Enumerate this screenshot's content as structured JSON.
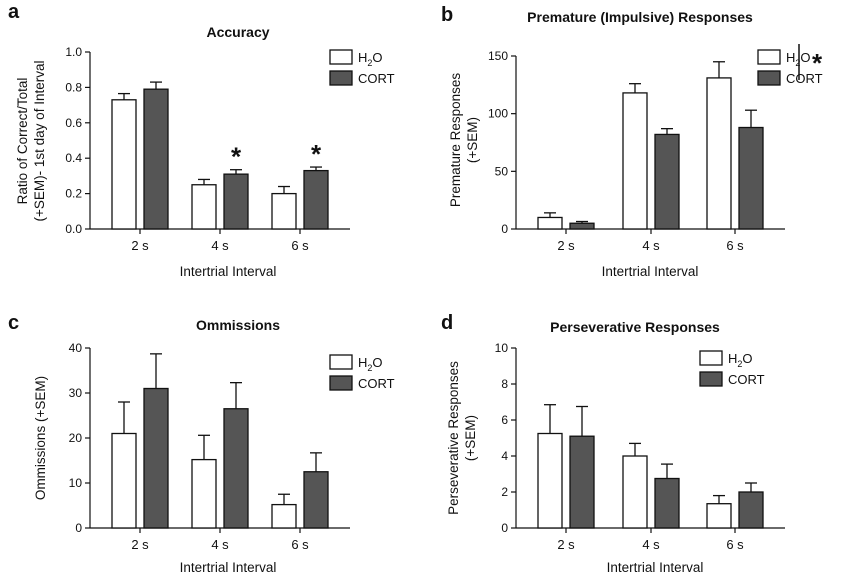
{
  "chart_data": [
    {
      "type": "bar",
      "panel": "a",
      "title": "Accuracy",
      "xlabel": "Intertrial Interval",
      "ylabel": [
        "Ratio of Correct/Total",
        "(+SEM)- 1st day of Interval"
      ],
      "categories": [
        "2 s",
        "4 s",
        "6 s"
      ],
      "ylim": [
        0,
        1.0
      ],
      "yticks": [
        "0.0",
        "0.2",
        "0.4",
        "0.6",
        "0.8",
        "1.0"
      ],
      "series": [
        {
          "name": "H2O",
          "legend_main": "H",
          "legend_sub": "2",
          "legend_tail": "O",
          "color": "#ffffff",
          "values": [
            0.73,
            0.25,
            0.2
          ],
          "sem": [
            0.035,
            0.03,
            0.04
          ]
        },
        {
          "name": "CORT",
          "color": "#555555",
          "values": [
            0.79,
            0.31,
            0.33
          ],
          "sem": [
            0.04,
            0.025,
            0.02
          ]
        }
      ],
      "significance": [
        {
          "category": "4 s",
          "mark": "*"
        },
        {
          "category": "6 s",
          "mark": "*"
        }
      ]
    },
    {
      "type": "bar",
      "panel": "b",
      "title": "Premature (Impulsive) Responses",
      "xlabel": "Intertrial Interval",
      "ylabel": [
        "Premature Responses",
        "(+SEM)"
      ],
      "categories": [
        "2 s",
        "4 s",
        "6 s"
      ],
      "ylim": [
        0,
        150
      ],
      "yticks": [
        "0",
        "50",
        "100",
        "150"
      ],
      "series": [
        {
          "name": "H2O",
          "legend_main": "H",
          "legend_sub": "2",
          "legend_tail": "O",
          "color": "#ffffff",
          "values": [
            10,
            118,
            131
          ],
          "sem": [
            4,
            8,
            14
          ]
        },
        {
          "name": "CORT",
          "color": "#555555",
          "values": [
            5,
            82,
            88
          ],
          "sem": [
            1.5,
            5,
            15
          ]
        }
      ],
      "legend_significance": "*"
    },
    {
      "type": "bar",
      "panel": "c",
      "title": "Ommissions",
      "xlabel": "Intertrial Interval",
      "ylabel": [
        "Ommissions (+SEM)"
      ],
      "categories": [
        "2 s",
        "4 s",
        "6 s"
      ],
      "ylim": [
        0,
        40
      ],
      "yticks": [
        "0",
        "10",
        "20",
        "30",
        "40"
      ],
      "series": [
        {
          "name": "H2O",
          "legend_main": "H",
          "legend_sub": "2",
          "legend_tail": "O",
          "color": "#ffffff",
          "values": [
            21,
            15.2,
            5.2
          ],
          "sem": [
            7,
            5.4,
            2.3
          ]
        },
        {
          "name": "CORT",
          "color": "#555555",
          "values": [
            31,
            26.5,
            12.5
          ],
          "sem": [
            7.7,
            5.8,
            4.2
          ]
        }
      ]
    },
    {
      "type": "bar",
      "panel": "d",
      "title": "Perseverative Responses",
      "xlabel": "Intertrial Interval",
      "ylabel": [
        "Perseverative Responses",
        "(+SEM)"
      ],
      "categories": [
        "2 s",
        "4 s",
        "6 s"
      ],
      "ylim": [
        0,
        10
      ],
      "yticks": [
        "0",
        "2",
        "4",
        "6",
        "8",
        "10"
      ],
      "series": [
        {
          "name": "H2O",
          "legend_main": "H",
          "legend_sub": "2",
          "legend_tail": "O",
          "color": "#ffffff",
          "values": [
            5.25,
            4.0,
            1.35
          ],
          "sem": [
            1.6,
            0.7,
            0.45
          ]
        },
        {
          "name": "CORT",
          "color": "#555555",
          "values": [
            5.1,
            2.75,
            2.0
          ],
          "sem": [
            1.65,
            0.8,
            0.5
          ]
        }
      ]
    }
  ]
}
